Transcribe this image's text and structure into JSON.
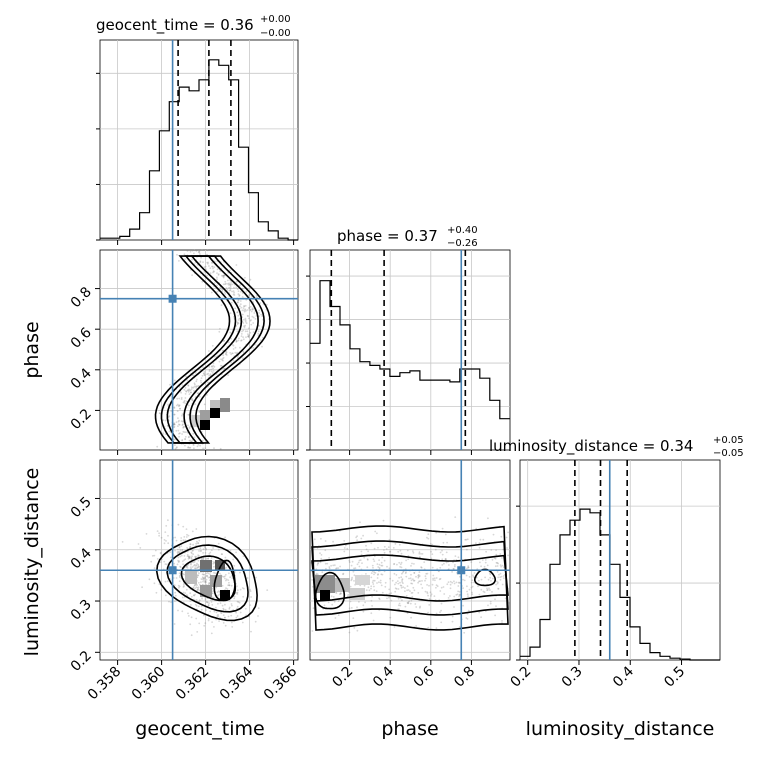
{
  "titles": {
    "geocent_time": {
      "prefix": "geocent_time = 0.36",
      "plus": "+0.00",
      "minus": "−0.00"
    },
    "phase": {
      "prefix": "phase = 0.37",
      "plus": "+0.40",
      "minus": "−0.26"
    },
    "luminosity_distance": {
      "prefix": "luminosity_distance = 0.34",
      "plus": "+0.05",
      "minus": "−0.05"
    }
  },
  "axis_labels": {
    "geocent_time": "geocent_time",
    "phase": "phase",
    "luminosity_distance": "luminosity_distance"
  },
  "colors": {
    "truth": "#4682b4",
    "hist": "#000000",
    "grid": "#c8c8c8",
    "scatter": "#8c8c8c"
  },
  "chart_data": {
    "type": "corner",
    "parameters": [
      "geocent_time",
      "phase",
      "luminosity_distance"
    ],
    "truths": {
      "geocent_time": 0.3605,
      "phase": 0.75,
      "luminosity_distance": 0.36
    },
    "quantiles": {
      "geocent_time": [
        0.36075,
        0.36215,
        0.36315
      ],
      "phase": [
        0.11,
        0.37,
        0.77
      ],
      "luminosity_distance": [
        0.292,
        0.342,
        0.394
      ]
    },
    "ranges": {
      "geocent_time": [
        0.3572,
        0.3662
      ],
      "phase": [
        0.005,
        0.99
      ],
      "luminosity_distance": [
        0.185,
        0.575
      ]
    },
    "ticks": {
      "geocent_time": [
        "0.358",
        "0.360",
        "0.362",
        "0.364",
        "0.366"
      ],
      "phase": [
        "0.2",
        "0.4",
        "0.6",
        "0.8"
      ],
      "luminosity_distance": [
        "0.2",
        "0.3",
        "0.4",
        "0.5"
      ]
    },
    "hist_geocent_time": {
      "edges_start": 0.3572,
      "bin_width": 0.00045,
      "values": [
        0.01,
        0.01,
        0.02,
        0.06,
        0.15,
        0.38,
        0.6,
        0.76,
        0.84,
        0.82,
        0.88,
        0.99,
        0.96,
        0.88,
        0.51,
        0.26,
        0.1,
        0.05,
        0.01,
        0.0
      ]
    },
    "hist_phase": {
      "edges_start": 0.005,
      "bin_width": 0.0492,
      "values": [
        0.58,
        0.92,
        0.78,
        0.68,
        0.55,
        0.48,
        0.46,
        0.44,
        0.4,
        0.42,
        0.43,
        0.38,
        0.38,
        0.38,
        0.37,
        0.44,
        0.44,
        0.39,
        0.27,
        0.17
      ]
    },
    "hist_luminosity_distance": {
      "edges_start": 0.185,
      "bin_width": 0.0195,
      "values": [
        0.02,
        0.07,
        0.22,
        0.52,
        0.68,
        0.76,
        0.82,
        0.8,
        0.68,
        0.52,
        0.34,
        0.18,
        0.09,
        0.04,
        0.02,
        0.01,
        0.005,
        0.0,
        0.0,
        0.0
      ]
    }
  }
}
